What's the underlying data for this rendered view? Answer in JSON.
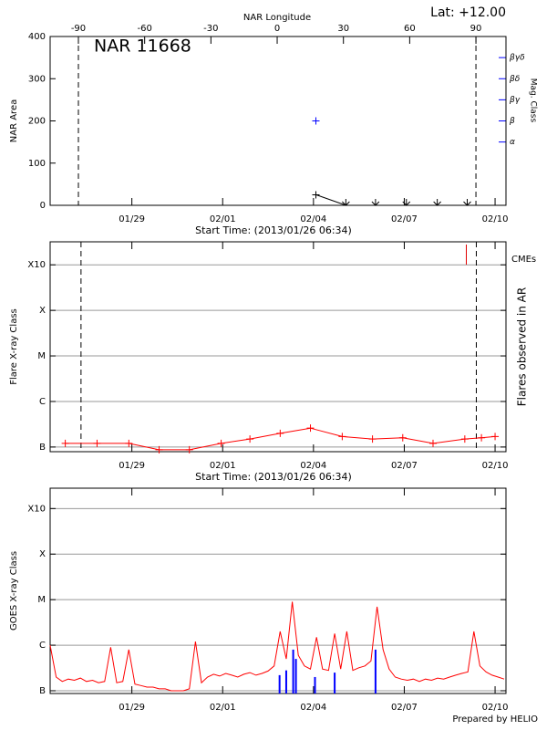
{
  "header": {
    "lat": "Lat: +12.00"
  },
  "footer": "Prepared by HELIO",
  "chart_data": [
    {
      "type": "line",
      "title": "NAR 11668",
      "xlabel": "Start Time: (2013/01/26 06:34)",
      "x2label": "NAR Longitude",
      "ylabel": "NAR Area",
      "y2label": "Mag. Class",
      "y2color": "#0000ff",
      "xlim": [
        0.3,
        15.36
      ],
      "xticks": [
        {
          "value": 3,
          "label": "01/29"
        },
        {
          "value": 6,
          "label": "02/01"
        },
        {
          "value": 9,
          "label": "02/04"
        },
        {
          "value": 12,
          "label": "02/07"
        },
        {
          "value": 15,
          "label": "02/10"
        }
      ],
      "x2lim": [
        -102.8,
        103.6
      ],
      "x2ticks": [
        -90,
        -60,
        -30,
        0,
        30,
        60,
        90
      ],
      "limb_longitudes": [
        -90,
        90
      ],
      "ylim": [
        0,
        400
      ],
      "yticks": [
        0,
        100,
        200,
        300,
        400
      ],
      "y2lim": [
        0,
        8
      ],
      "y2ticks": [
        {
          "value": 3,
          "label": "α"
        },
        {
          "value": 4,
          "label": "β"
        },
        {
          "value": 5,
          "label": "βγ"
        },
        {
          "value": 6,
          "label": "βδ"
        },
        {
          "value": 7,
          "label": "βγδ"
        }
      ],
      "series": [
        {
          "color": "#000000",
          "x": [
            9.08,
            10.07,
            11.05,
            12.07,
            13.09,
            14.08
          ],
          "values": [
            25,
            0,
            0,
            0,
            0,
            0
          ],
          "markers": [
            "plus",
            "arrow-down",
            "arrow-down",
            "arrow-down",
            "arrow-down",
            "arrow-down"
          ],
          "line": true
        },
        {
          "color": "#0000ff",
          "axis": "y2",
          "x": [
            9.08
          ],
          "values": [
            4
          ],
          "markers": [
            "plus"
          ],
          "line": false
        }
      ]
    },
    {
      "type": "line",
      "xlabel": "Start Time: (2013/01/26 06:34)",
      "ylabel": "Flare X-ray Class",
      "y2label": "Flares observed in AR",
      "log": true,
      "grid": true,
      "xlim": [
        0.3,
        15.36
      ],
      "xticks": [
        {
          "value": 3,
          "label": "01/29"
        },
        {
          "value": 6,
          "label": "02/01"
        },
        {
          "value": 9,
          "label": "02/04"
        },
        {
          "value": 12,
          "label": "02/07"
        },
        {
          "value": 15,
          "label": "02/10"
        }
      ],
      "ylim": [
        7.9e-08,
        0.0032
      ],
      "yticks": [
        {
          "value": 1e-07,
          "label": "B"
        },
        {
          "value": 1e-06,
          "label": "C"
        },
        {
          "value": 1e-05,
          "label": "M"
        },
        {
          "value": 0.0001,
          "label": "X"
        },
        {
          "value": 0.001,
          "label": "X10"
        }
      ],
      "limb_times": [
        1.32,
        14.38
      ],
      "cmes": {
        "label": "CMEs",
        "color": "#e00000",
        "x": [
          14.05
        ]
      },
      "series": [
        {
          "color": "#ff0000",
          "x": [
            0.8,
            1.85,
            2.9,
            3.9,
            4.9,
            5.95,
            6.9,
            7.9,
            8.9,
            9.95,
            10.95,
            11.95,
            12.95,
            14.0,
            14.55,
            15.0
          ],
          "values": [
            1.2e-07,
            1.2e-07,
            1.2e-07,
            8.7e-08,
            8.7e-08,
            1.2e-07,
            1.5e-07,
            2e-07,
            2.6e-07,
            1.7e-07,
            1.5e-07,
            1.6e-07,
            1.2e-07,
            1.5e-07,
            1.6e-07,
            1.7e-07
          ],
          "marker": "plus",
          "line": true
        }
      ]
    },
    {
      "type": "line",
      "ylabel": "GOES X-ray Class",
      "log": true,
      "grid": true,
      "xlim": [
        0.3,
        15.36
      ],
      "xticks": [
        {
          "value": 3,
          "label": "01/29"
        },
        {
          "value": 6,
          "label": "02/01"
        },
        {
          "value": 9,
          "label": "02/04"
        },
        {
          "value": 12,
          "label": "02/07"
        },
        {
          "value": 15,
          "label": "02/10"
        }
      ],
      "ylim": [
        8.7e-08,
        0.0028
      ],
      "yticks": [
        {
          "value": 1e-07,
          "label": "B"
        },
        {
          "value": 1e-06,
          "label": "C"
        },
        {
          "value": 1e-05,
          "label": "M"
        },
        {
          "value": 0.0001,
          "label": "X"
        },
        {
          "value": 0.001,
          "label": "X10"
        }
      ],
      "flares": {
        "color": "#0000ff",
        "x": [
          7.88,
          8.1,
          8.33,
          8.42,
          9.05,
          9.7,
          11.05
        ],
        "values": [
          2.2e-07,
          2.8e-07,
          8e-07,
          5e-07,
          2e-07,
          2.5e-07,
          8e-07
        ]
      },
      "series": [
        {
          "color": "#ff0000",
          "line": true,
          "x": [
            0.3,
            0.5,
            0.7,
            0.9,
            1.1,
            1.3,
            1.5,
            1.7,
            1.9,
            2.1,
            2.3,
            2.5,
            2.7,
            2.9,
            3.1,
            3.3,
            3.5,
            3.7,
            3.9,
            4.1,
            4.3,
            4.5,
            4.7,
            4.9,
            5.1,
            5.3,
            5.5,
            5.7,
            5.9,
            6.1,
            6.3,
            6.5,
            6.7,
            6.9,
            7.1,
            7.3,
            7.5,
            7.7,
            7.9,
            8.1,
            8.3,
            8.5,
            8.7,
            8.9,
            9.1,
            9.3,
            9.5,
            9.7,
            9.9,
            10.1,
            10.3,
            10.5,
            10.7,
            10.9,
            11.1,
            11.3,
            11.5,
            11.7,
            11.9,
            12.1,
            12.3,
            12.5,
            12.7,
            12.9,
            13.1,
            13.3,
            13.5,
            13.7,
            13.9,
            14.1,
            14.3,
            14.5,
            14.7,
            14.9,
            15.1,
            15.3
          ],
          "values": [
            1e-06,
            2e-07,
            1.6e-07,
            1.8e-07,
            1.7e-07,
            1.9e-07,
            1.6e-07,
            1.7e-07,
            1.5e-07,
            1.6e-07,
            9e-07,
            1.5e-07,
            1.6e-07,
            8e-07,
            1.4e-07,
            1.3e-07,
            1.2e-07,
            1.2e-07,
            1.1e-07,
            1.1e-07,
            1e-07,
            1e-07,
            1e-07,
            1.1e-07,
            1.2e-06,
            1.5e-07,
            2e-07,
            2.3e-07,
            2.1e-07,
            2.4e-07,
            2.2e-07,
            2e-07,
            2.3e-07,
            2.5e-07,
            2.2e-07,
            2.4e-07,
            2.7e-07,
            3.5e-07,
            2e-06,
            5e-07,
            9e-06,
            6e-07,
            3.5e-07,
            3e-07,
            1.5e-06,
            3e-07,
            2.8e-07,
            1.8e-06,
            3e-07,
            2e-06,
            2.8e-07,
            3.2e-07,
            3.5e-07,
            4.5e-07,
            7e-06,
            8e-07,
            3e-07,
            2e-07,
            1.8e-07,
            1.7e-07,
            1.8e-07,
            1.6e-07,
            1.8e-07,
            1.7e-07,
            1.9e-07,
            1.8e-07,
            2e-07,
            2.2e-07,
            2.4e-07,
            2.6e-07,
            2e-06,
            3.5e-07,
            2.6e-07,
            2.2e-07,
            2e-07,
            1.8e-07
          ]
        }
      ]
    }
  ]
}
